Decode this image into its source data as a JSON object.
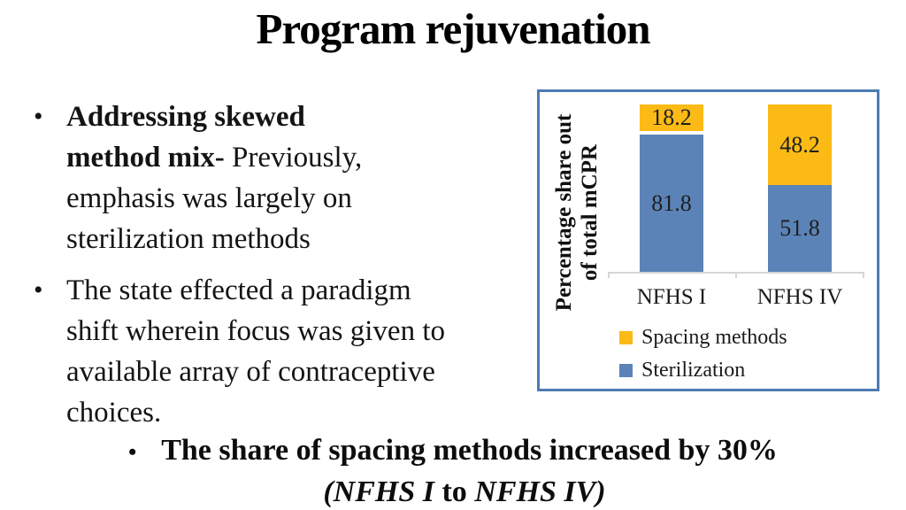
{
  "slide": {
    "title": "Program rejuvenation",
    "bullet_char": "•",
    "bullet1": {
      "lines": [
        {
          "bold": "Addressing skewed",
          "regular": ""
        },
        {
          "bold": "method mix-",
          "regular": " Previously,"
        },
        {
          "bold": "",
          "regular": "emphasis was largely on"
        },
        {
          "bold": "",
          "regular": "sterilization methods"
        }
      ]
    },
    "bullet2": {
      "lines": [
        {
          "bold": "",
          "regular": "The state effected a paradigm"
        },
        {
          "bold": "",
          "regular": "shift wherein focus was given to"
        },
        {
          "bold": "",
          "regular": "available array of contraceptive"
        },
        {
          "bold": "",
          "regular": "choices."
        }
      ]
    },
    "summary": {
      "line1": "The share of spacing methods increased by 30%",
      "line2_open_italic": "(NFHS I",
      "line2_mid": " to ",
      "line2_close_italic": "NFHS IV)"
    }
  },
  "chart_data": {
    "type": "bar",
    "stacked": true,
    "categories": [
      "NFHS I",
      "NFHS IV"
    ],
    "series": [
      {
        "name": "Spacing methods",
        "color": "#FBBA15",
        "values": [
          18.2,
          48.2
        ]
      },
      {
        "name": "Sterilization",
        "color": "#5B83B7",
        "values": [
          81.8,
          51.8
        ]
      }
    ],
    "ylabel": "Percentage share out of total mCPR",
    "ylabel_lines": [
      "Percentage share out",
      "of total mCPR"
    ],
    "ylim": [
      0,
      100
    ],
    "legend_position": "bottom-inside",
    "grid": false,
    "data_labels": true
  },
  "colors": {
    "spacing": "#FBBA15",
    "sterilization": "#5B83B7",
    "chart_border": "#4D7AB3",
    "axis_line": "#D6D6D6",
    "text": "#141414"
  }
}
